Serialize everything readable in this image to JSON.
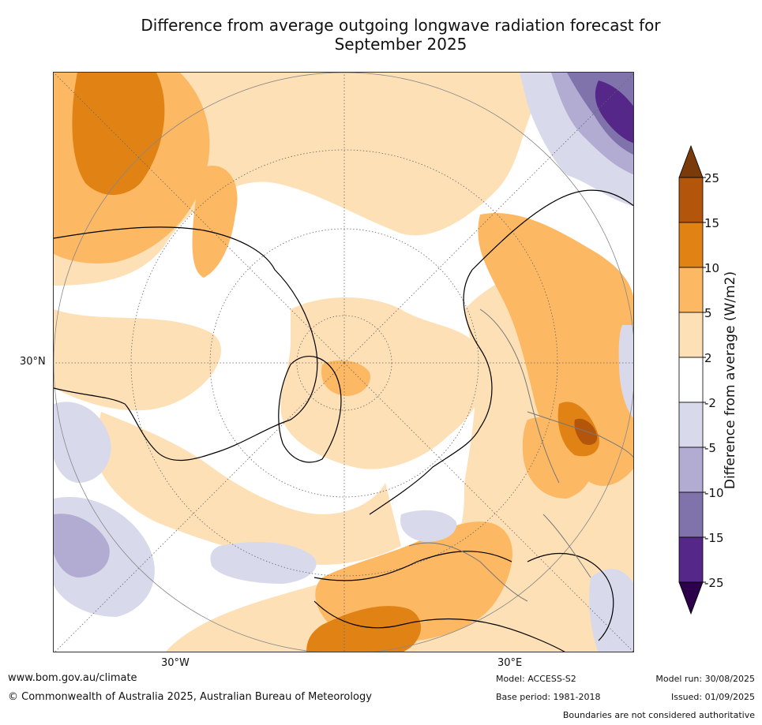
{
  "title": {
    "line1": "Difference from average outgoing longwave radiation forecast for",
    "line2": "September 2025"
  },
  "map": {
    "projection": "north-polar-stereographic",
    "region": "Northern Hemisphere",
    "axis_labels": {
      "lat_left": "30°N",
      "lon_bottom_left": "30°W",
      "lon_bottom_right": "30°E"
    }
  },
  "colorbar": {
    "title": "Difference from average (W/m2)",
    "tick_labels": [
      "25",
      "15",
      "10",
      "5",
      "2",
      "-2",
      "-5",
      "-10",
      "-15",
      "-25"
    ],
    "bins": [
      {
        "range": ">25",
        "color": "#7a3a0a"
      },
      {
        "range": "15 to 25",
        "color": "#b3560c"
      },
      {
        "range": "10 to 15",
        "color": "#e08214"
      },
      {
        "range": "5 to 10",
        "color": "#fdb863"
      },
      {
        "range": "2 to 5",
        "color": "#fee0b6"
      },
      {
        "range": "-2 to 2",
        "color": "#ffffff"
      },
      {
        "range": "-5 to -2",
        "color": "#d8daeb"
      },
      {
        "range": "-10 to -5",
        "color": "#b2abd2"
      },
      {
        "range": "-15 to -10",
        "color": "#8073ac"
      },
      {
        "range": "-25 to -15",
        "color": "#542788"
      },
      {
        "range": "<-25",
        "color": "#2d004b"
      }
    ]
  },
  "footer": {
    "website": "www.bom.gov.au/climate",
    "copyright": "© Commonwealth of Australia 2025, Australian Bureau of Meteorology",
    "model": "Model: ACCESS-S2",
    "base_period": "Base period: 1981-2018",
    "model_run": "Model run: 30/08/2025",
    "issued": "Issued: 01/09/2025",
    "disclaimer": "Boundaries are not considered authoritative"
  }
}
